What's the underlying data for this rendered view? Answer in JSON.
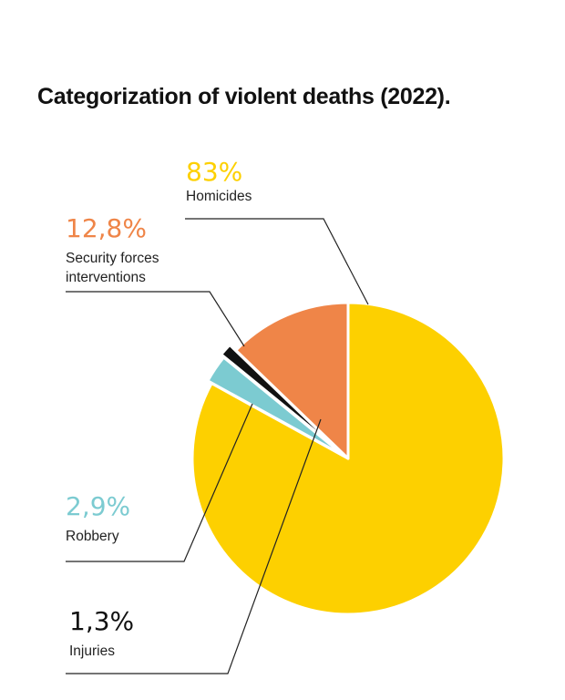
{
  "title": "Categorization of violent deaths (2022).",
  "chart_data": {
    "type": "pie",
    "title": "Categorization of violent deaths (2022).",
    "unit": "%",
    "slices": [
      {
        "name": "Homicides",
        "value": 83,
        "display": "83%",
        "label_lines": [
          "Homicides"
        ],
        "color": "#FDD000"
      },
      {
        "name": "Robbery",
        "value": 2.9,
        "display": "2,9%",
        "label_lines": [
          "Robbery"
        ],
        "color": "#7CCBD1"
      },
      {
        "name": "Injuries",
        "value": 1.3,
        "display": "1,3%",
        "label_lines": [
          "Injuries"
        ],
        "color": "#111111"
      },
      {
        "name": "Security forces interventions",
        "value": 12.8,
        "display": "12,8%",
        "label_lines": [
          "Security forces",
          "interventions"
        ],
        "color": "#EF8548"
      }
    ]
  }
}
